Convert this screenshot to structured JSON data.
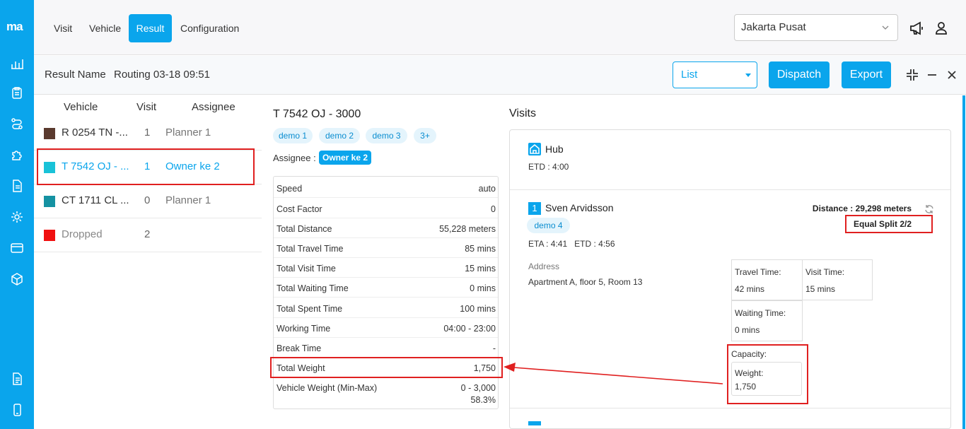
{
  "app": {
    "logo": "ma"
  },
  "sidebar": {
    "icons": [
      "chart-icon",
      "clipboard-icon",
      "route-icon",
      "puzzle-icon",
      "document-icon",
      "settings-icon",
      "card-icon",
      "box-icon",
      "file-text-icon",
      "phone-icon"
    ]
  },
  "nav": {
    "tabs": [
      {
        "label": "Visit",
        "active": false
      },
      {
        "label": "Vehicle",
        "active": false
      },
      {
        "label": "Result",
        "active": true
      },
      {
        "label": "Configuration",
        "active": false
      }
    ]
  },
  "header": {
    "location": "Jakarta Pusat",
    "icons": [
      "megaphone-icon",
      "user-icon"
    ]
  },
  "result_bar": {
    "label": "Result Name",
    "name": "Routing 03-18 09:51",
    "view": "List",
    "dispatch": "Dispatch",
    "export": "Export",
    "window_icons": [
      "collapse-icon",
      "minimize-icon",
      "close-icon"
    ]
  },
  "vehicle_list": {
    "headers": {
      "vehicle": "Vehicle",
      "visit": "Visit",
      "assignee": "Assignee"
    },
    "rows": [
      {
        "name": "R 0254 TN -...",
        "visit": "1",
        "assignee": "Planner 1",
        "color": "#5a3a2e",
        "selected": false
      },
      {
        "name": "T 7542 OJ - ...",
        "visit": "1",
        "assignee": "Owner ke 2",
        "color": "#19c2d8",
        "selected": true
      },
      {
        "name": "CT 1711 CL ...",
        "visit": "0",
        "assignee": "Planner 1",
        "color": "#1592a2",
        "selected": false
      },
      {
        "name": "Dropped",
        "visit": "2",
        "assignee": "",
        "color": "#f01010",
        "selected": false
      }
    ]
  },
  "detail": {
    "title": "T 7542 OJ - 3000",
    "tags": [
      "demo 1",
      "demo 2",
      "demo 3",
      "3+"
    ],
    "assignee_label": "Assignee :",
    "assignee": "Owner ke 2",
    "stats": [
      {
        "k": "Speed",
        "v": "auto"
      },
      {
        "k": "Cost Factor",
        "v": "0"
      },
      {
        "k": "Total Distance",
        "v": "55,228 meters"
      },
      {
        "k": "Total Travel Time",
        "v": "85 mins"
      },
      {
        "k": "Total Visit Time",
        "v": "15 mins"
      },
      {
        "k": "Total Waiting Time",
        "v": "0 mins"
      },
      {
        "k": "Total Spent Time",
        "v": "100 mins"
      },
      {
        "k": "Working Time",
        "v": "04:00 - 23:00"
      },
      {
        "k": "Break Time",
        "v": "-"
      },
      {
        "k": "Total Weight",
        "v": "1,750"
      }
    ],
    "vehicle_weight": {
      "k": "Vehicle Weight (Min-Max)",
      "v": "0 - 3,000",
      "pct": "58.3%"
    }
  },
  "visits": {
    "title": "Visits",
    "hub": {
      "name": "Hub",
      "etd": "ETD : 4:00"
    },
    "stop": {
      "number": "1",
      "name": "Sven Arvidsson",
      "tag": "demo 4",
      "eta_etd": "ETA : 4:41   ETD : 4:56",
      "distance": "Distance : 29,298 meters",
      "split": "Equal Split 2/2",
      "address_label": "Address",
      "address": "Apartment A, floor 5, Room 13",
      "travel_time_label": "Travel Time:",
      "travel_time": "42 mins",
      "visit_time_label": "Visit Time:",
      "visit_time": "15 mins",
      "waiting_time_label": "Waiting Time:",
      "waiting_time": "0 mins",
      "capacity_label": "Capacity:",
      "weight_label": "Weight:",
      "weight": "1,750"
    }
  },
  "annotation": {
    "color": "#e02020"
  }
}
